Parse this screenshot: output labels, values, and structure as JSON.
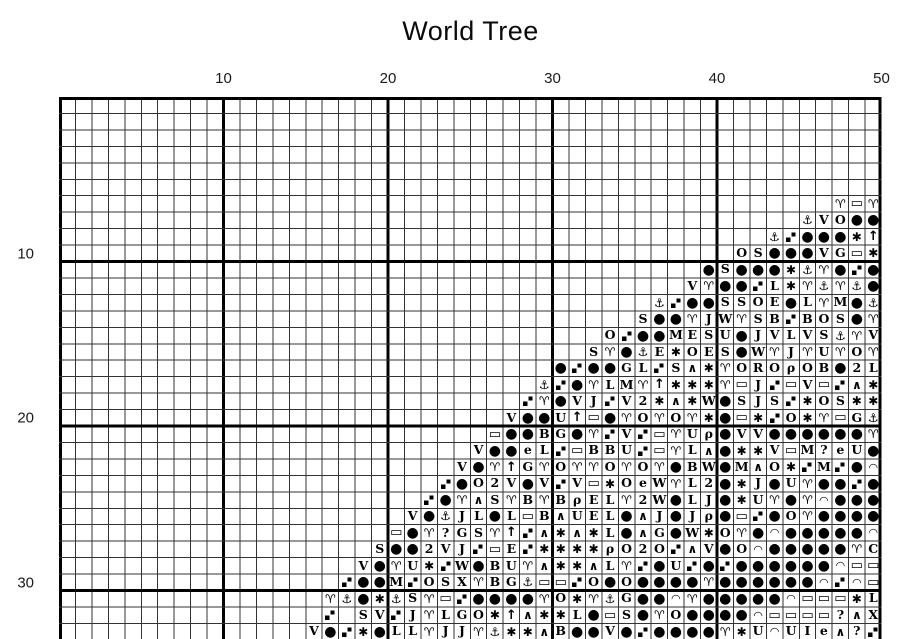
{
  "title": "World Tree",
  "colors": {
    "background": "#ffffff",
    "grid_thin": "#333333",
    "grid_thick": "#000000",
    "symbol": "#000000",
    "text": "#1a1a1a"
  },
  "chart_data": {
    "type": "table",
    "title": "World Tree",
    "description_visible": "cross-stitch pattern grid, symbols mark stitch cells",
    "x_tick_labels": [
      "10",
      "20",
      "30",
      "40",
      "50"
    ],
    "y_tick_labels": [
      "10",
      "20",
      "30"
    ],
    "cols": 50,
    "rows": 33,
    "thick_line_every": 10,
    "grid_on": true,
    "symbols": {
      "b": {
        "glyph": "●",
        "name": "black-circle"
      },
      "a": {
        "glyph": "✱",
        "name": "heavy-asterisk"
      },
      "n": {
        "glyph": "⚓",
        "name": "anchor"
      },
      "r": {
        "glyph": "♈",
        "name": "aries-sign"
      },
      "t": {
        "glyph": "▭",
        "name": "white-rectangle"
      },
      "d": {
        "glyph": "▞",
        "name": "two-small-squares"
      },
      "u": {
        "glyph": "↑",
        "name": "up-arrow"
      },
      "^": {
        "glyph": "∧",
        "name": "caret"
      },
      "c": {
        "glyph": "◠",
        "name": "arc"
      },
      "p": {
        "glyph": "ρ",
        "name": "rho"
      }
    },
    "pattern_rows": [
      "..................................................",
      "..................................................",
      "..................................................",
      "..................................................",
      "..................................................",
      "..................................................",
      "...............................................rtr",
      ".............................................nVObb",
      "...........................................ndbbbau",
      ".........................................OSbbbVGta",
      ".......................................bSbbbanrbdb",
      "......................................VrbbdLarnrnb",
      "....................................ndbbSSOEbLrMbn",
      "...................................SbbrJWrSBdBOSbr",
      ".................................OdbbMESUbJVLVSnrV",
      "................................SrbnEaOESbWrJrUrOr",
      "..............................bdbbGLdS^arOROpOBb2L",
      ".............................ndbrLMruaaartJdtVtd^a",
      "............................drbVJdV2a^aWbSJSdaOSaa",
      "...........................VbbUutbrOrOrabtadOartGn",
      "..........................tbbBGbrdVdtrUpbVVbbbbbbr",
      ".........................VbbeLdtBBUdtrL^baaVtM?eUb",
      "........................VbruGrOrrOrOrbBWbM^OadMdbc",
      ".......................dbO2VbVdVtaOeWrL2baJbUrbbdb",
      "......................dbr^SrBrBpELr2WbLJbaUrbrcbbb",
      ".....................VbnJLbLtB^UELb^JbJpbtdbOrbbbb",
      "....................tbr?GSrud^a^aLb^GbWaOrbcbbbbbc",
      "...................Sbb2VJdtEdaaaapO2Od^VbOcbbbbbrC",
      "..................VbrUadWbBUr^aa^LrdbUdbdbbbbbbctt",
      ".................dbbMdOSXrBGnttdObObbbbrbbbbbbcdct",
      "................rnbanSrtdbbbbrOarnGbbcrbbbbbctttaL",
      "................d.SVdJrLGOau^aaLbtSbrObbbbctttt?^X",
      "...............VbdabLLrJJrnaa^BbbVbdbbbbraUcUIe^?d"
    ]
  }
}
